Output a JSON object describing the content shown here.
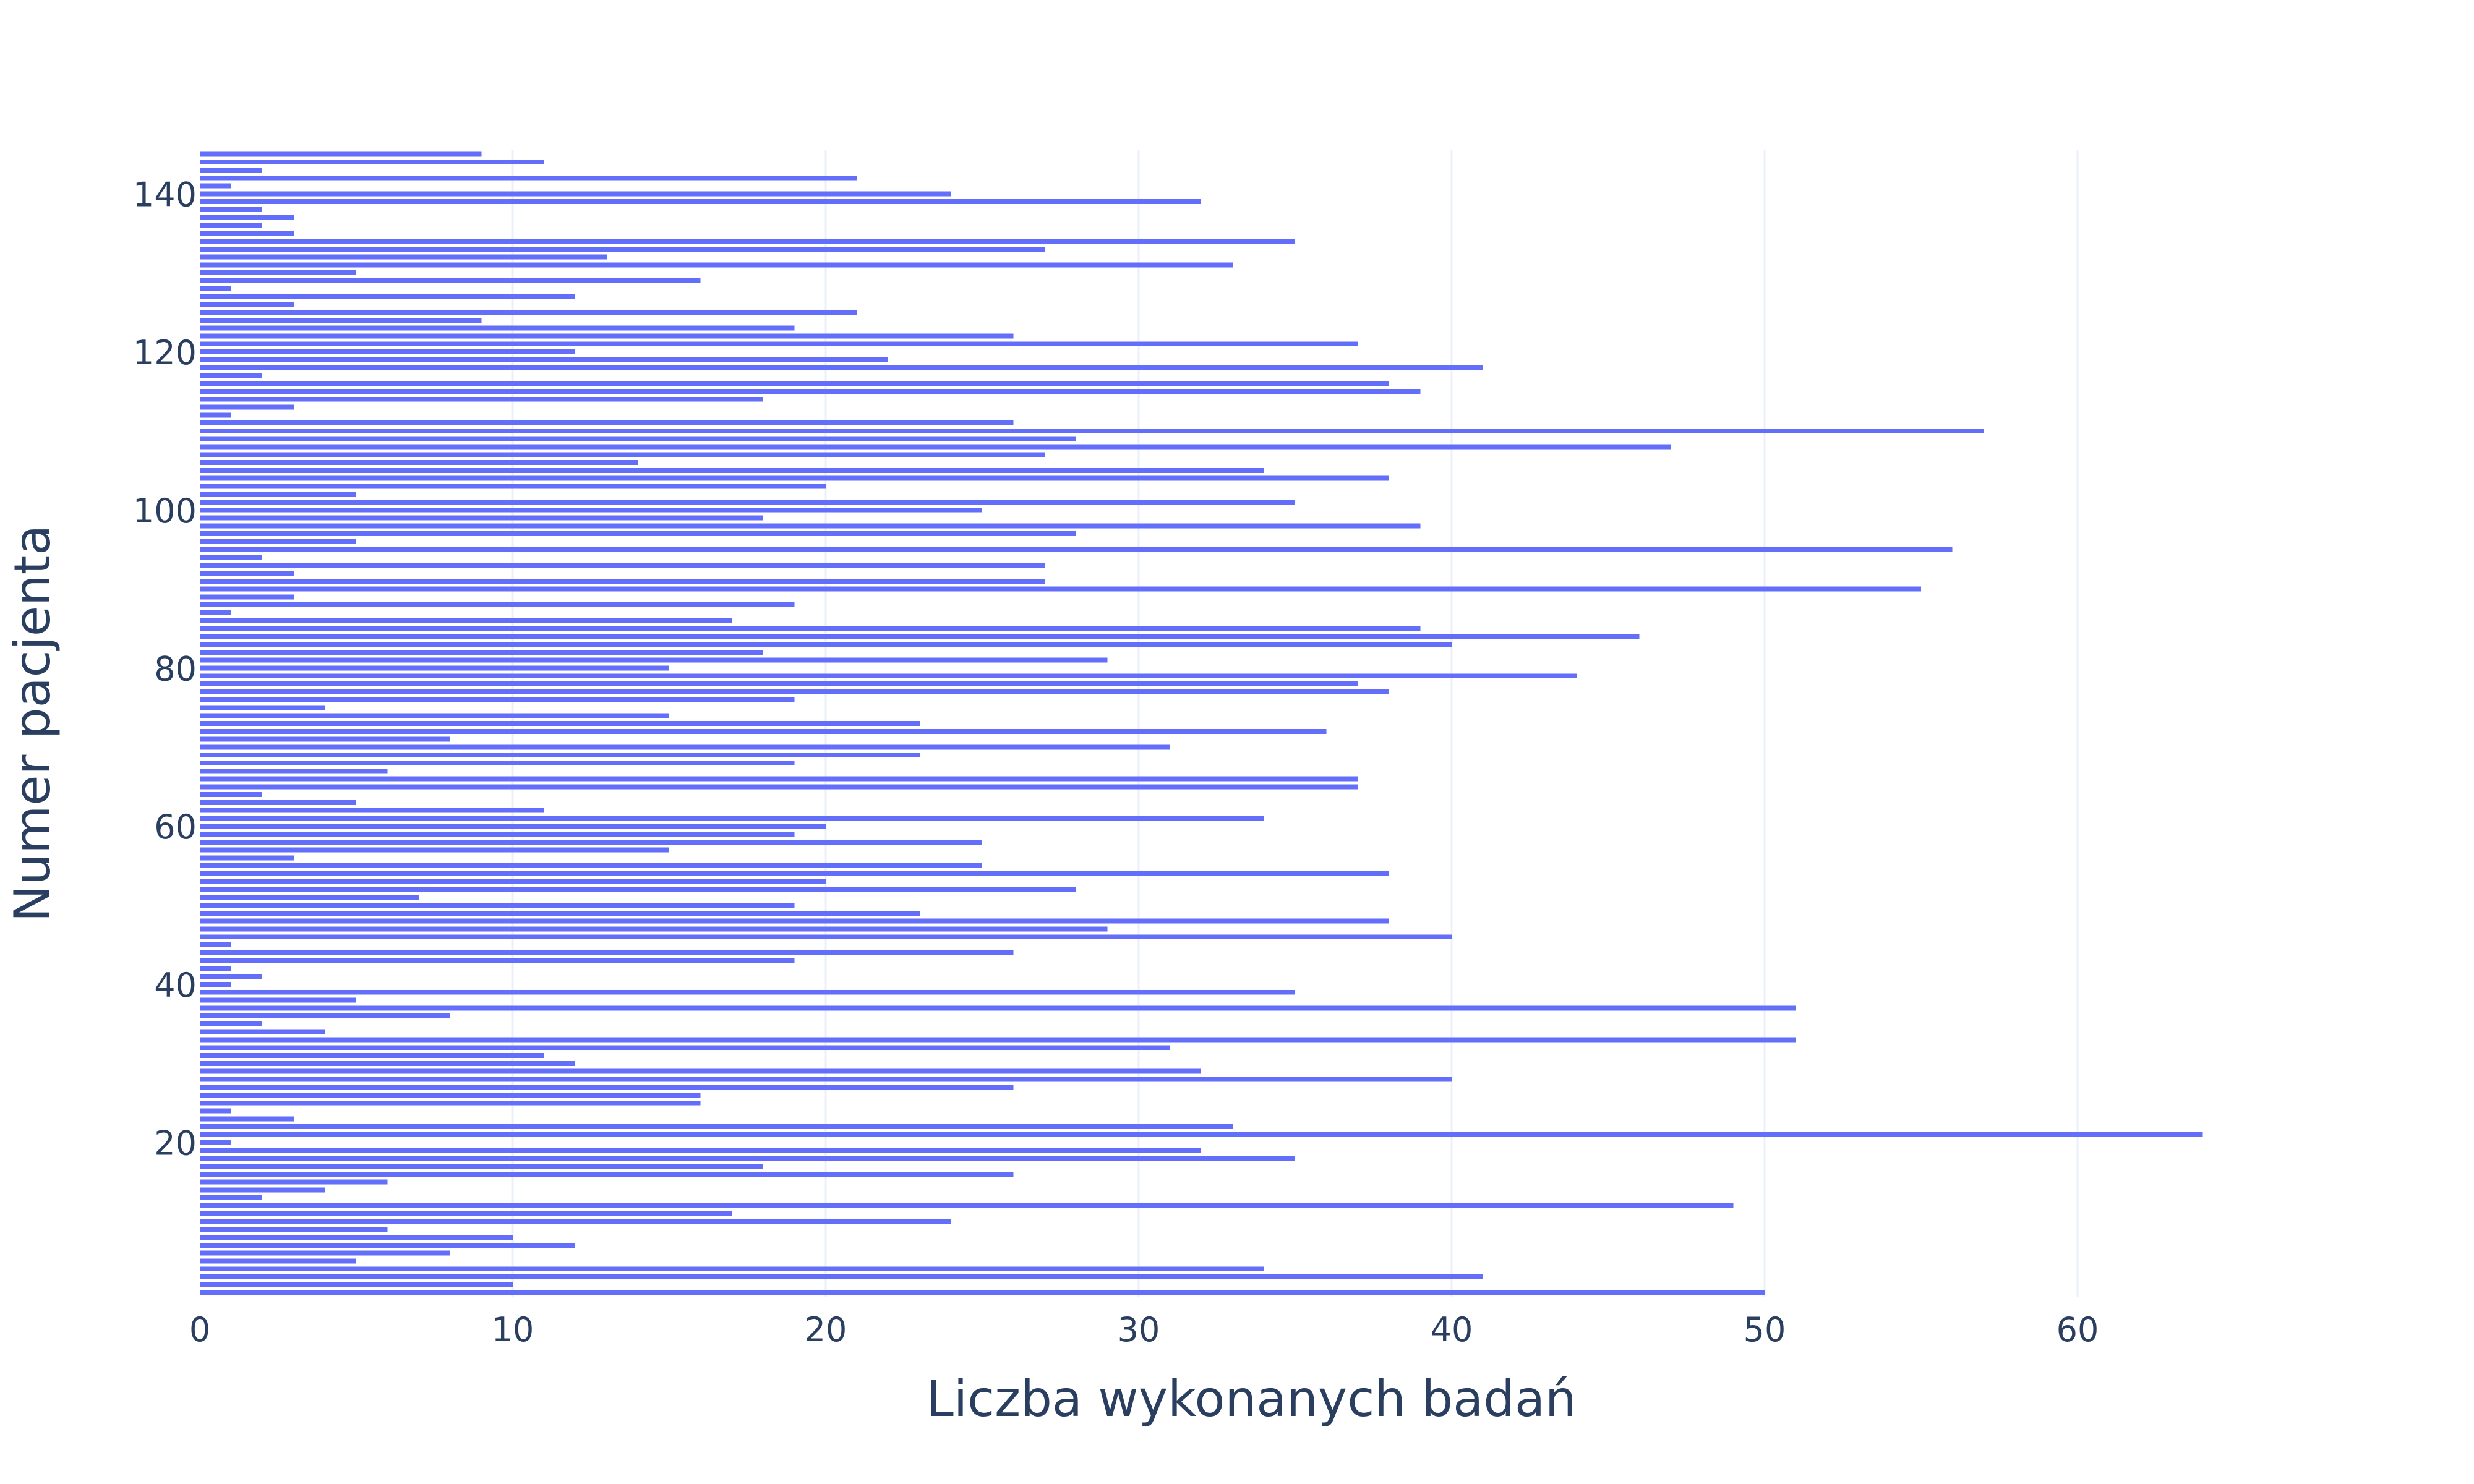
{
  "chart_data": {
    "type": "bar",
    "orientation": "horizontal",
    "title": "",
    "xlabel": "Liczba wykonanych badań",
    "ylabel": "Numer pacjenta",
    "xlim": [
      0,
      70
    ],
    "ylim": [
      0.5,
      145.5
    ],
    "x_ticks": [
      0,
      10,
      20,
      30,
      40,
      50,
      60
    ],
    "y_ticks": [
      20,
      40,
      60,
      80,
      100,
      120,
      140
    ],
    "grid": "vertical",
    "legend": "none",
    "bar_color": "#636efa",
    "gridline_color": "#ebf0f8",
    "text_color": "#2a3f5f",
    "background": "#ffffff",
    "categories": [
      1,
      2,
      3,
      4,
      5,
      6,
      7,
      8,
      9,
      10,
      11,
      12,
      13,
      14,
      15,
      16,
      17,
      18,
      19,
      20,
      21,
      22,
      23,
      24,
      25,
      26,
      27,
      28,
      29,
      30,
      31,
      32,
      33,
      34,
      35,
      36,
      37,
      38,
      39,
      40,
      41,
      42,
      43,
      44,
      45,
      46,
      47,
      48,
      49,
      50,
      51,
      52,
      53,
      54,
      55,
      56,
      57,
      58,
      59,
      60,
      61,
      62,
      63,
      64,
      65,
      66,
      67,
      68,
      69,
      70,
      71,
      72,
      73,
      74,
      75,
      76,
      77,
      78,
      79,
      80,
      81,
      82,
      83,
      84,
      85,
      86,
      87,
      88,
      89,
      90,
      91,
      92,
      93,
      94,
      95,
      96,
      97,
      98,
      99,
      100,
      101,
      102,
      103,
      104,
      105,
      106,
      107,
      108,
      109,
      110,
      111,
      112,
      113,
      114,
      115,
      116,
      117,
      118,
      119,
      120,
      121,
      122,
      123,
      124,
      125,
      126,
      127,
      128,
      129,
      130,
      131,
      132,
      133,
      134,
      135,
      136,
      137,
      138,
      139,
      140,
      141,
      142,
      143,
      144,
      145
    ],
    "values": [
      50,
      10,
      41,
      34,
      5,
      8,
      12,
      10,
      6,
      24,
      17,
      49,
      2,
      4,
      6,
      26,
      18,
      35,
      32,
      1,
      64,
      33,
      3,
      1,
      16,
      16,
      26,
      40,
      32,
      12,
      11,
      31,
      51,
      4,
      2,
      8,
      51,
      5,
      35,
      1,
      2,
      1,
      19,
      26,
      1,
      40,
      29,
      38,
      23,
      19,
      7,
      28,
      20,
      38,
      25,
      3,
      15,
      25,
      19,
      20,
      34,
      11,
      5,
      2,
      37,
      37,
      6,
      19,
      23,
      31,
      8,
      36,
      23,
      15,
      4,
      19,
      38,
      37,
      44,
      15,
      29,
      18,
      40,
      46,
      39,
      17,
      1,
      19,
      3,
      55,
      27,
      3,
      27,
      2,
      56,
      5,
      28,
      39,
      18,
      25,
      35,
      5,
      20,
      38,
      34,
      14,
      27,
      47,
      28,
      57,
      26,
      1,
      3,
      18,
      39,
      38,
      2,
      41,
      22,
      12,
      37,
      26,
      19,
      9,
      21,
      3,
      12,
      1,
      16,
      5,
      33,
      13,
      27,
      35,
      3,
      2,
      3,
      2,
      32,
      24,
      1,
      21,
      2,
      11,
      9
    ]
  }
}
